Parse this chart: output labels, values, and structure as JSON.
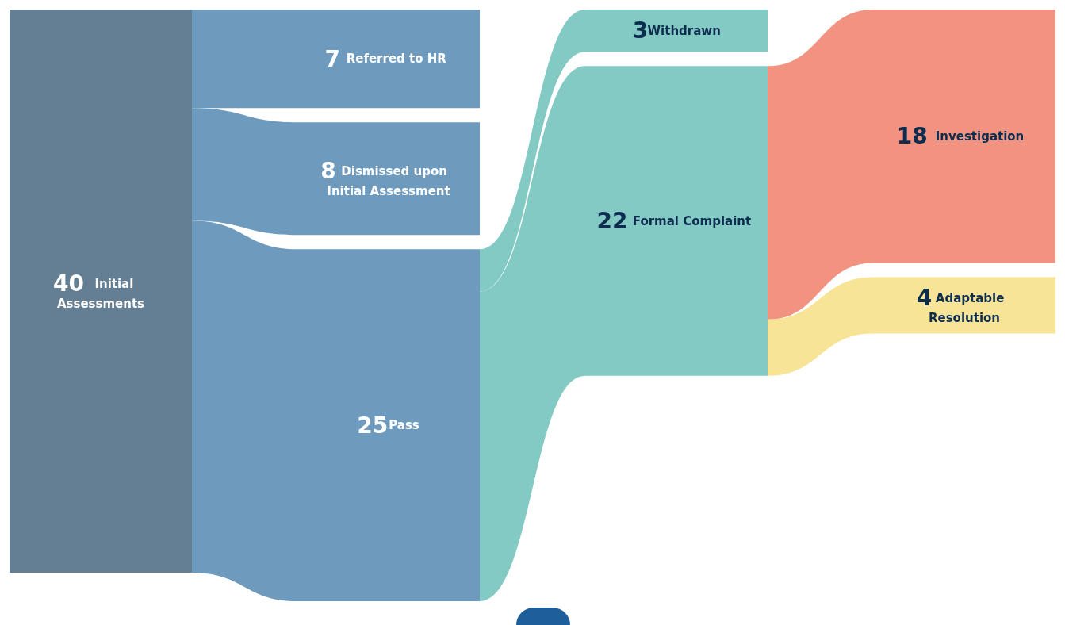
{
  "chart_data": {
    "type": "other",
    "categories": [
      "Initial Assessments",
      "Referred to HR",
      "Dismissed upon Initial Assessment",
      "Pass",
      "Withdrawn",
      "Formal Complaint",
      "Investigation",
      "Adaptable Resolution"
    ],
    "values": [
      40,
      7,
      8,
      25,
      3,
      22,
      18,
      4
    ],
    "colors": [
      "#647f93",
      "#6d9abd",
      "#6d9abd",
      "#6d9abd",
      "#84cac4",
      "#84cac4",
      "#f29382",
      "#f7e496"
    ],
    "data_labels": true
  }
}
